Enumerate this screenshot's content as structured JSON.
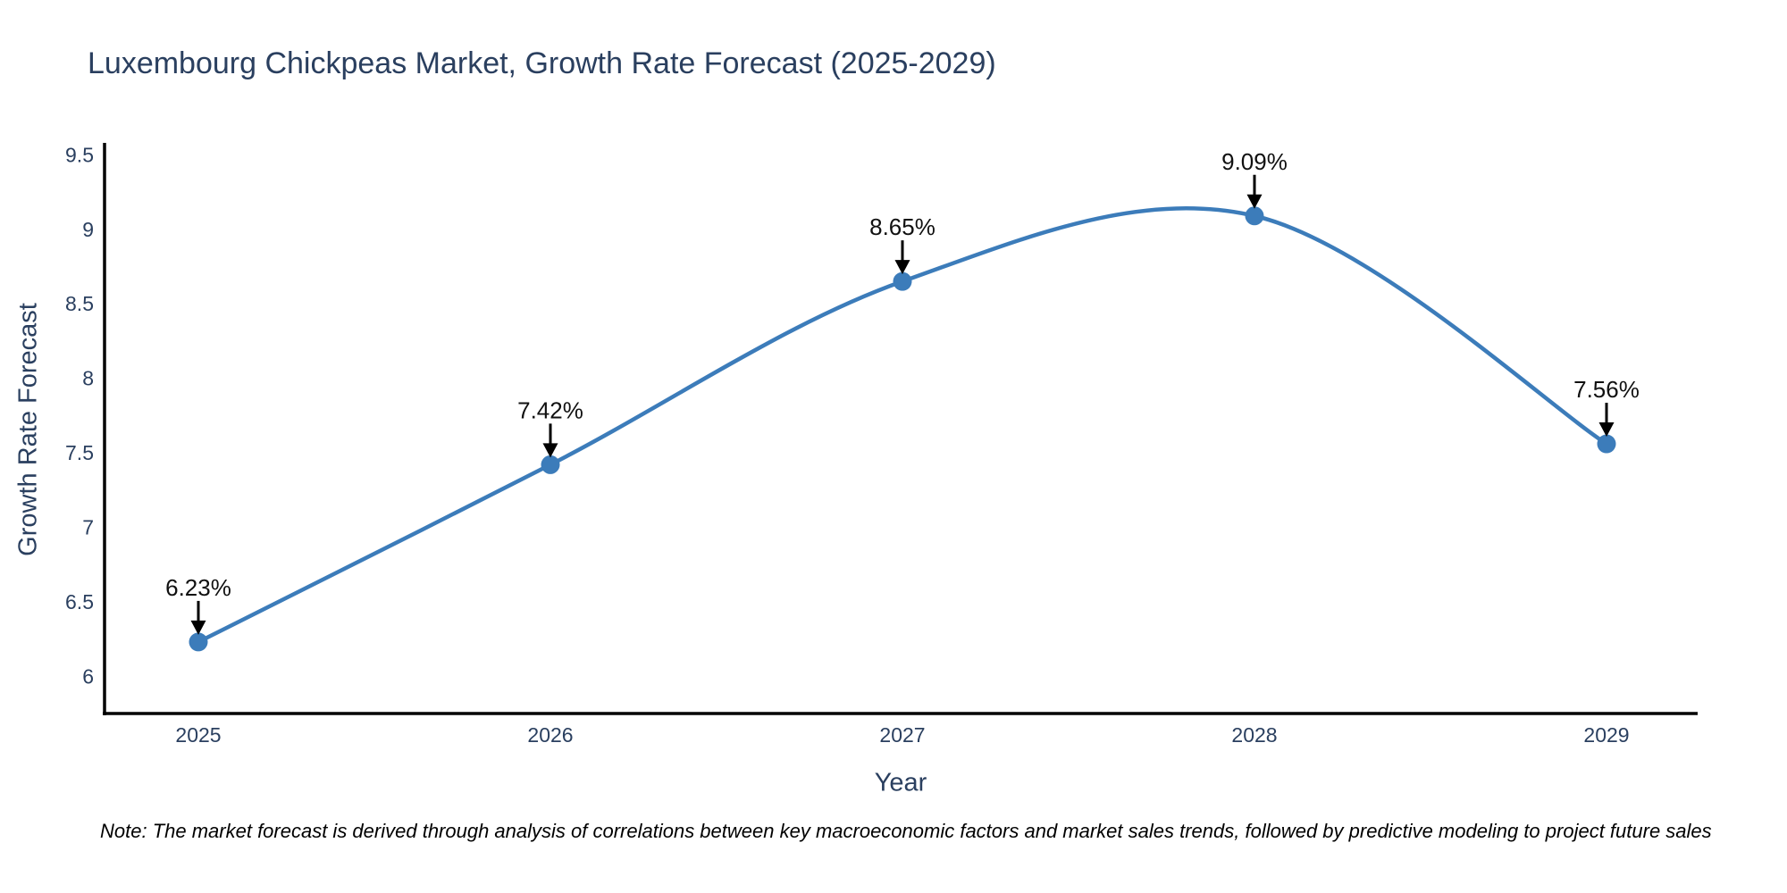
{
  "title": "Luxembourg Chickpeas Market, Growth Rate Forecast (2025-2029)",
  "footnote": "Note: The market forecast is derived through analysis of correlations between key macroeconomic factors and market sales trends, followed by predictive modeling to project future sales",
  "chart_data": {
    "type": "line",
    "title": "Luxembourg Chickpeas Market, Growth Rate Forecast (2025-2029)",
    "xlabel": "Year",
    "ylabel": "Growth Rate Forecast",
    "categories": [
      "2025",
      "2026",
      "2027",
      "2028",
      "2029"
    ],
    "series": [
      {
        "name": "Growth Rate Forecast",
        "values": [
          6.23,
          7.42,
          8.65,
          9.09,
          7.56
        ]
      }
    ],
    "point_labels": [
      "6.23%",
      "7.42%",
      "8.65%",
      "9.09%",
      "7.56%"
    ],
    "yticks": [
      6,
      6.5,
      7,
      7.5,
      8,
      8.5,
      9,
      9.5
    ],
    "ylim": [
      5.75,
      9.58
    ],
    "line_shape": "spline",
    "grid": false,
    "legend_position": "none",
    "annotations_have_arrows": true,
    "colors": {
      "line": "#3c7cba",
      "marker": "#3c7cba",
      "axis_line": "#000000",
      "axis_text": "#2a3f5f",
      "annotation_text": "#111111",
      "arrow": "#000000",
      "background": "#ffffff"
    }
  }
}
